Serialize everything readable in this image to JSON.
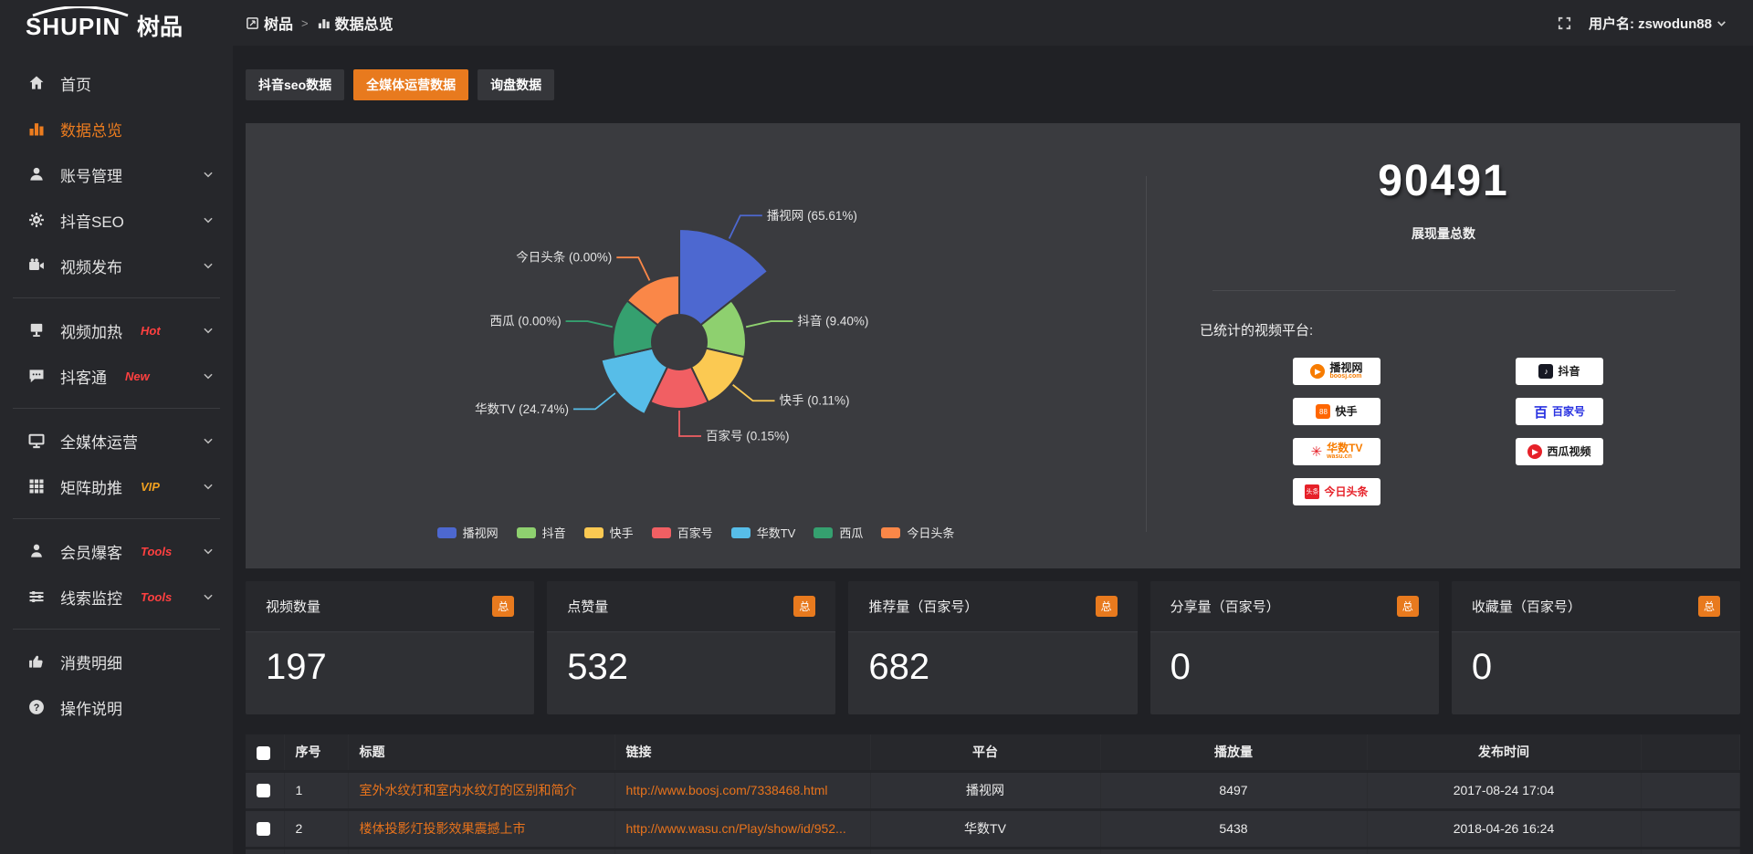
{
  "topbar": {
    "logo_text": "SHUPIN",
    "logo_cn": "树品",
    "breadcrumb_root": "树品",
    "breadcrumb_sep": ">",
    "breadcrumb_current": "数据总览",
    "user_label": "用户名: zswodun88"
  },
  "sidebar": {
    "items": [
      {
        "label": "首页",
        "icon": "home-icon"
      },
      {
        "label": "数据总览",
        "icon": "bar-chart-icon",
        "active": true
      },
      {
        "label": "账号管理",
        "icon": "user-icon",
        "expandable": true
      },
      {
        "label": "抖音SEO",
        "icon": "gear-icon",
        "expandable": true
      },
      {
        "label": "视频发布",
        "icon": "camera-icon",
        "expandable": true
      },
      {
        "type": "divider"
      },
      {
        "label": "视频加热",
        "icon": "screen-icon",
        "tag": "Hot",
        "tag_color": "#ff4040",
        "expandable": true
      },
      {
        "label": "抖客通",
        "icon": "chat-icon",
        "tag": "New",
        "tag_color": "#ff4040",
        "expandable": true
      },
      {
        "type": "divider"
      },
      {
        "label": "全媒体运营",
        "icon": "monitor-icon",
        "expandable": true
      },
      {
        "label": "矩阵助推",
        "icon": "grid-icon",
        "tag": "VIP",
        "tag_color": "#f0a020",
        "expandable": true
      },
      {
        "type": "divider"
      },
      {
        "label": "会员爆客",
        "icon": "person-icon",
        "tag": "Tools",
        "tag_color": "#ff4040",
        "expandable": true
      },
      {
        "label": "线索监控",
        "icon": "sliders-icon",
        "tag": "Tools",
        "tag_color": "#ff4040",
        "expandable": true
      },
      {
        "type": "divider"
      },
      {
        "label": "消费明细",
        "icon": "thumbs-up-icon"
      },
      {
        "label": "操作说明",
        "icon": "question-icon"
      }
    ]
  },
  "tabs": {
    "items": [
      {
        "label": "抖音seo数据",
        "active": false
      },
      {
        "label": "全媒体运营数据",
        "active": true
      },
      {
        "label": "询盘数据",
        "active": false
      }
    ]
  },
  "chart_data": {
    "type": "pie",
    "subtype": "nightingale-rose-donut",
    "title": "",
    "label_format": "{name} ({percent}%)",
    "legend_position": "bottom",
    "series": [
      {
        "name": "播视网",
        "value": 65.61,
        "color": "#4d68d0"
      },
      {
        "name": "抖音",
        "value": 9.4,
        "color": "#8ed06f"
      },
      {
        "name": "快手",
        "value": 0.11,
        "color": "#fbc952"
      },
      {
        "name": "百家号",
        "value": 0.15,
        "color": "#f15f63"
      },
      {
        "name": "华数TV",
        "value": 24.74,
        "color": "#57bde8"
      },
      {
        "name": "西瓜",
        "value": 0.0,
        "color": "#35a06f"
      },
      {
        "name": "今日头条",
        "value": 0.0,
        "color": "#fa8748"
      }
    ],
    "legend": [
      "播视网",
      "抖音",
      "快手",
      "百家号",
      "华数TV",
      "西瓜",
      "今日头条"
    ]
  },
  "summary": {
    "total_value": "90491",
    "total_label": "展现量总数",
    "platforms_label": "已统计的视频平台:",
    "platforms": [
      {
        "id": "boosj",
        "name": "播视网",
        "sub": "boosj.com"
      },
      {
        "id": "douyin",
        "name": "抖音",
        "sub": ""
      },
      {
        "id": "kuaishou",
        "name": "快手",
        "sub": ""
      },
      {
        "id": "baijiahao",
        "name": "百家号",
        "sub": ""
      },
      {
        "id": "wasu",
        "name": "华数TV",
        "sub": "wasu.cn"
      },
      {
        "id": "xigua",
        "name": "西瓜视频",
        "sub": ""
      },
      {
        "id": "toutiao",
        "name": "今日头条",
        "sub": ""
      }
    ]
  },
  "stat_cards": [
    {
      "label": "视频数量",
      "badge": "总",
      "value": "197"
    },
    {
      "label": "点赞量",
      "badge": "总",
      "value": "532"
    },
    {
      "label": "推荐量（百家号）",
      "badge": "总",
      "value": "682"
    },
    {
      "label": "分享量（百家号）",
      "badge": "总",
      "value": "0"
    },
    {
      "label": "收藏量（百家号）",
      "badge": "总",
      "value": "0"
    }
  ],
  "table": {
    "headers": [
      "序号",
      "标题",
      "链接",
      "平台",
      "播放量",
      "发布时间"
    ],
    "rows": [
      {
        "index": "1",
        "title": "室外水纹灯和室内水纹灯的区别和简介",
        "link": "http://www.boosj.com/7338468.html",
        "platform": "播视网",
        "plays": "8497",
        "date": "2017-08-24 17:04"
      },
      {
        "index": "2",
        "title": "楼体投影灯投影效果震撼上市",
        "link": "http://www.wasu.cn/Play/show/id/952...",
        "platform": "华数TV",
        "plays": "5438",
        "date": "2018-04-26 16:24"
      },
      {
        "index": "",
        "title": "",
        "link": "",
        "platform": "",
        "plays": "",
        "date": ""
      }
    ]
  }
}
